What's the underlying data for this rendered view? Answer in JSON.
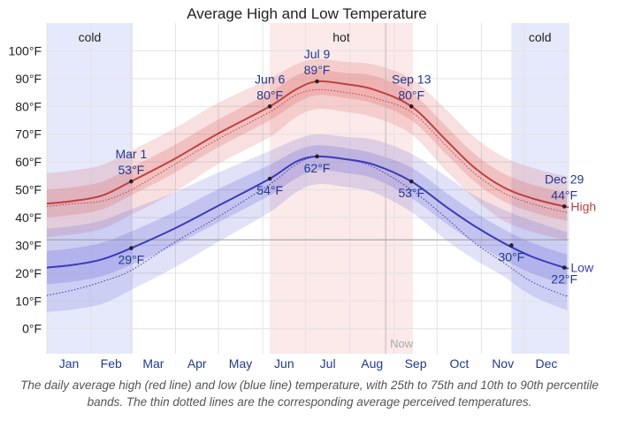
{
  "chart_data": {
    "type": "area",
    "title": "Average High and Low Temperature",
    "xlabel": "",
    "ylabel": "",
    "ylim": [
      -9,
      110
    ],
    "yticks": [
      0,
      10,
      20,
      30,
      40,
      50,
      60,
      70,
      80,
      90,
      100
    ],
    "ytick_labels": [
      "0°F",
      "10°F",
      "20°F",
      "30°F",
      "40°F",
      "50°F",
      "60°F",
      "70°F",
      "80°F",
      "90°F",
      "100°F"
    ],
    "months": [
      "Jan",
      "Feb",
      "Mar",
      "Apr",
      "May",
      "Jun",
      "Jul",
      "Aug",
      "Sep",
      "Oct",
      "Nov",
      "Dec"
    ],
    "grid": true,
    "freezing_line": 32,
    "seasons": [
      {
        "label": "cold",
        "start_day": 1,
        "end_day": 60,
        "color": "#e6e9fb"
      },
      {
        "label": "hot",
        "start_day": 157,
        "end_day": 256,
        "color": "#fce9e9"
      },
      {
        "label": "cold",
        "start_day": 326,
        "end_day": 365,
        "color": "#e6e9fb"
      }
    ],
    "now_marker": {
      "label": "Now",
      "day": 238
    },
    "series": [
      {
        "name": "High",
        "color": "#c0403f",
        "days": [
          1,
          20,
          40,
          60,
          90,
          120,
          157,
          175,
          190,
          210,
          230,
          256,
          280,
          300,
          320,
          340,
          363,
          365
        ],
        "values": [
          45,
          46,
          48,
          53,
          61,
          70,
          80,
          86,
          89,
          88,
          86,
          80,
          68,
          58,
          51,
          47,
          44,
          44
        ],
        "p25_75": [
          [
            40,
            50
          ],
          [
            41,
            51
          ],
          [
            43,
            53
          ],
          [
            48,
            58
          ],
          [
            56,
            66
          ],
          [
            65,
            75
          ],
          [
            75,
            85
          ],
          [
            81,
            91
          ],
          [
            84,
            93
          ],
          [
            83,
            92
          ],
          [
            81,
            91
          ],
          [
            75,
            85
          ],
          [
            63,
            73
          ],
          [
            53,
            63
          ],
          [
            46,
            56
          ],
          [
            42,
            52
          ],
          [
            39,
            49
          ],
          [
            39,
            49
          ]
        ],
        "p10_90": [
          [
            33,
            56
          ],
          [
            34,
            57
          ],
          [
            36,
            59
          ],
          [
            41,
            64
          ],
          [
            49,
            72
          ],
          [
            59,
            81
          ],
          [
            69,
            90
          ],
          [
            76,
            95
          ],
          [
            79,
            97
          ],
          [
            78,
            96
          ],
          [
            76,
            95
          ],
          [
            70,
            90
          ],
          [
            57,
            79
          ],
          [
            47,
            69
          ],
          [
            39,
            62
          ],
          [
            35,
            58
          ],
          [
            32,
            55
          ],
          [
            32,
            55
          ]
        ],
        "feels_like": [
          44,
          45,
          46,
          50,
          59,
          68,
          78,
          84,
          86,
          85,
          83,
          78,
          66,
          56,
          49,
          45,
          42,
          42
        ]
      },
      {
        "name": "Low",
        "color": "#3b3bbb",
        "days": [
          1,
          20,
          40,
          60,
          90,
          120,
          157,
          175,
          190,
          210,
          230,
          256,
          280,
          300,
          320,
          340,
          363,
          365
        ],
        "values": [
          22,
          23,
          25,
          29,
          36,
          44,
          54,
          60,
          62,
          61,
          59,
          53,
          44,
          37,
          31,
          26,
          22,
          22
        ],
        "p25_75": [
          [
            16,
            28
          ],
          [
            17,
            29
          ],
          [
            19,
            31
          ],
          [
            23,
            35
          ],
          [
            30,
            42
          ],
          [
            38,
            50
          ],
          [
            48,
            59
          ],
          [
            54,
            64
          ],
          [
            57,
            66
          ],
          [
            56,
            65
          ],
          [
            54,
            63
          ],
          [
            47,
            58
          ],
          [
            38,
            49
          ],
          [
            31,
            42
          ],
          [
            25,
            36
          ],
          [
            20,
            31
          ],
          [
            16,
            27
          ],
          [
            16,
            27
          ]
        ],
        "p10_90": [
          [
            6,
            36
          ],
          [
            7,
            37
          ],
          [
            9,
            39
          ],
          [
            14,
            43
          ],
          [
            22,
            49
          ],
          [
            31,
            56
          ],
          [
            42,
            64
          ],
          [
            49,
            68
          ],
          [
            52,
            70
          ],
          [
            51,
            69
          ],
          [
            49,
            68
          ],
          [
            42,
            63
          ],
          [
            32,
            55
          ],
          [
            25,
            48
          ],
          [
            19,
            43
          ],
          [
            12,
            39
          ],
          [
            7,
            35
          ],
          [
            7,
            35
          ]
        ],
        "feels_like": [
          12,
          14,
          17,
          21,
          31,
          40,
          52,
          59,
          62,
          61,
          58,
          50,
          40,
          31,
          24,
          17,
          12,
          12
        ]
      }
    ],
    "annotations": [
      {
        "date": "Mar 1",
        "value_label": "53°F",
        "day": 60,
        "value": 53,
        "label_position": "above"
      },
      {
        "date": "",
        "value_label": "29°F",
        "day": 60,
        "value": 29,
        "label_position": "below"
      },
      {
        "date": "Jun 6",
        "value_label": "80°F",
        "day": 157,
        "value": 80,
        "label_position": "above"
      },
      {
        "date": "",
        "value_label": "54°F",
        "day": 157,
        "value": 54,
        "label_position": "below"
      },
      {
        "date": "Jul 9",
        "value_label": "89°F",
        "day": 190,
        "value": 89,
        "label_position": "above"
      },
      {
        "date": "",
        "value_label": "62°F",
        "day": 190,
        "value": 62,
        "label_position": "below"
      },
      {
        "date": "Sep 13",
        "value_label": "80°F",
        "day": 256,
        "value": 80,
        "label_position": "above"
      },
      {
        "date": "",
        "value_label": "53°F",
        "day": 256,
        "value": 53,
        "label_position": "below"
      },
      {
        "date": "",
        "value_label": "30°F",
        "day": 326,
        "value": 30,
        "label_position": "below"
      },
      {
        "date": "Dec 29",
        "value_label": "44°F",
        "day": 363,
        "value": 44,
        "label_position": "above"
      },
      {
        "date": "",
        "value_label": "22°F",
        "day": 363,
        "value": 22,
        "label_position": "below"
      }
    ]
  },
  "caption": "The daily average high (red line) and low (blue line) temperature, with 25th to 75th and 10th to 90th percentile bands. The thin dotted lines are the corresponding average perceived temperatures."
}
